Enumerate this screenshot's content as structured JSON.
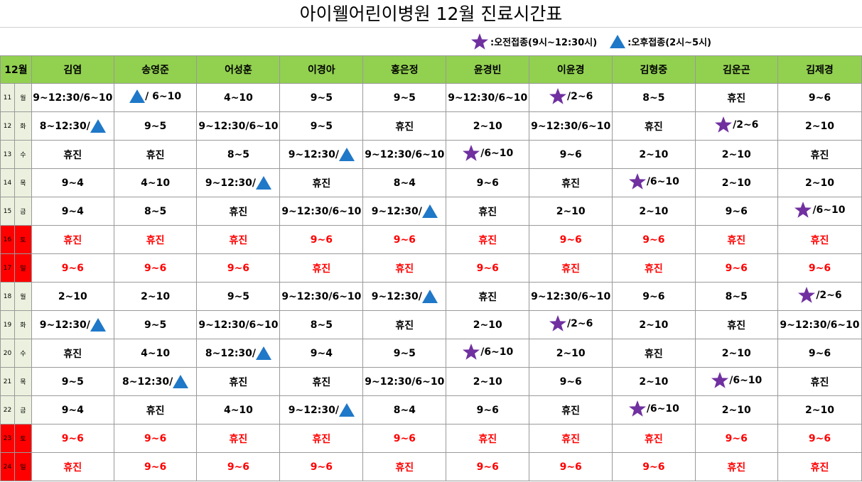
{
  "title": "아이웰어린이병원  12월  진료시간표",
  "legend": {
    "morning": ":오전접종(9시~12:30시)",
    "afternoon": ":오후접종(2시~5시)",
    "colors": {
      "star": "#7030a0",
      "triangle": "#1f78c8",
      "header": "#92d050",
      "weekend": "#ff0000"
    }
  },
  "header": {
    "month": "12월",
    "doctors": [
      "김염",
      "송영준",
      "어성훈",
      "이경아",
      "홍은정",
      "윤경빈",
      "이윤경",
      "김형중",
      "김운곤",
      "김제경"
    ]
  },
  "rows": [
    {
      "day": "11",
      "dow": "월",
      "weekend": false,
      "cells": [
        "9~12:30/6~10",
        "tri-prefix| / 6~10",
        "4~10",
        "9~5",
        "9~5",
        "9~12:30/6~10",
        "star-prefix|/2~6",
        "8~5",
        "휴진",
        "9~6"
      ]
    },
    {
      "day": "12",
      "dow": "화",
      "weekend": false,
      "cells": [
        "tri-suffix|8~12:30/",
        "9~5",
        "9~12:30/6~10",
        "9~5",
        "휴진",
        "2~10",
        "9~12:30/6~10",
        "휴진",
        "star-prefix|/2~6",
        "2~10"
      ]
    },
    {
      "day": "13",
      "dow": "수",
      "weekend": false,
      "cells": [
        "휴진",
        "휴진",
        "8~5",
        "tri-suffix|9~12:30/",
        "9~12:30/6~10",
        "star-prefix|/6~10",
        "9~6",
        "2~10",
        "2~10",
        "휴진"
      ]
    },
    {
      "day": "14",
      "dow": "목",
      "weekend": false,
      "cells": [
        "9~4",
        "4~10",
        "tri-suffix|9~12:30/",
        "휴진",
        "8~4",
        "9~6",
        "휴진",
        "star-prefix|/6~10",
        "2~10",
        "2~10"
      ]
    },
    {
      "day": "15",
      "dow": "금",
      "weekend": false,
      "cells": [
        "9~4",
        "8~5",
        "휴진",
        "9~12:30/6~10",
        "tri-suffix|9~12:30/",
        "휴진",
        "2~10",
        "2~10",
        "9~6",
        "star-prefix|/6~10"
      ]
    },
    {
      "day": "16",
      "dow": "토",
      "weekend": true,
      "cells": [
        "휴진",
        "휴진",
        "휴진",
        "9~6",
        "9~6",
        "휴진",
        "9~6",
        "9~6",
        "휴진",
        "휴진"
      ]
    },
    {
      "day": "17",
      "dow": "일",
      "weekend": true,
      "cells": [
        "9~6",
        "9~6",
        "9~6",
        "휴진",
        "휴진",
        "9~6",
        "휴진",
        "휴진",
        "9~6",
        "9~6"
      ]
    },
    {
      "day": "18",
      "dow": "월",
      "weekend": false,
      "cells": [
        "2~10",
        "2~10",
        "9~5",
        "9~12:30/6~10",
        "tri-suffix|9~12:30/",
        "휴진",
        "9~12:30/6~10",
        "9~6",
        "8~5",
        "star-prefix|/2~6"
      ]
    },
    {
      "day": "19",
      "dow": "화",
      "weekend": false,
      "cells": [
        "tri-suffix|9~12:30/",
        "9~5",
        "9~12:30/6~10",
        "8~5",
        "휴진",
        "2~10",
        "star-prefix|/2~6",
        "2~10",
        "휴진",
        "9~12:30/6~10"
      ]
    },
    {
      "day": "20",
      "dow": "수",
      "weekend": false,
      "cells": [
        "휴진",
        "4~10",
        "tri-suffix|8~12:30/",
        "9~4",
        "9~5",
        "star-prefix|/6~10",
        "2~10",
        "휴진",
        "2~10",
        "9~6"
      ]
    },
    {
      "day": "21",
      "dow": "목",
      "weekend": false,
      "cells": [
        "9~5",
        "tri-suffix|8~12:30/",
        "휴진",
        "휴진",
        "9~12:30/6~10",
        "2~10",
        "9~6",
        "2~10",
        "star-prefix|/6~10",
        "휴진"
      ]
    },
    {
      "day": "22",
      "dow": "금",
      "weekend": false,
      "cells": [
        "9~4",
        "휴진",
        "4~10",
        "tri-suffix|9~12:30/",
        "8~4",
        "9~6",
        "휴진",
        "star-prefix|/6~10",
        "2~10",
        "2~10"
      ]
    },
    {
      "day": "23",
      "dow": "토",
      "weekend": true,
      "cells": [
        "9~6",
        "9~6",
        "휴진",
        "휴진",
        "9~6",
        "휴진",
        "휴진",
        "휴진",
        "9~6",
        "9~6"
      ]
    },
    {
      "day": "24",
      "dow": "일",
      "weekend": true,
      "cells": [
        "휴진",
        "9~6",
        "9~6",
        "9~6",
        "휴진",
        "9~6",
        "9~6",
        "9~6",
        "휴진",
        "휴진"
      ]
    }
  ]
}
